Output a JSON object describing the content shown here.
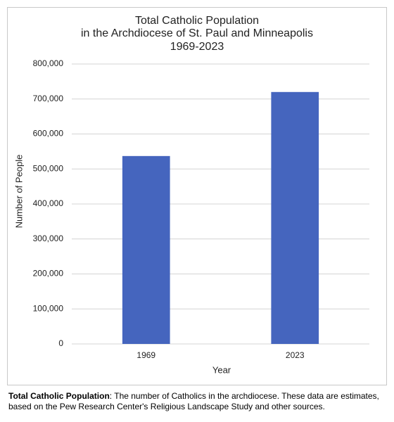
{
  "chart_data": {
    "type": "bar",
    "title": [
      "Total Catholic Population",
      "in the Archdiocese of St. Paul and Minneapolis",
      "1969-2023"
    ],
    "x_label": "Year",
    "y_label": "Number of People",
    "categories": [
      "1969",
      "2023"
    ],
    "values": [
      537000,
      720000
    ],
    "color": "#4565be",
    "ylim": [
      0,
      800000
    ],
    "yticks": [
      0,
      {
        "value": 100000,
        "label": "100,000"
      },
      {
        "value": 200000,
        "label": "200,000"
      },
      {
        "value": 300000,
        "label": "300,000"
      },
      {
        "value": 400000,
        "label": "400,000"
      },
      {
        "value": 500000,
        "label": "500,000"
      },
      {
        "value": 600000,
        "label": "600,000"
      },
      {
        "value": 700000,
        "label": "700,000"
      },
      {
        "value": 800000,
        "label": "800,000"
      }
    ],
    "grid": true
  },
  "caption": {
    "term": "Total Catholic Population",
    "text": ": The number of Catholics in the archdiocese. These data are estimates, based on the Pew Research Center's Religious Landscape Study and other sources."
  }
}
